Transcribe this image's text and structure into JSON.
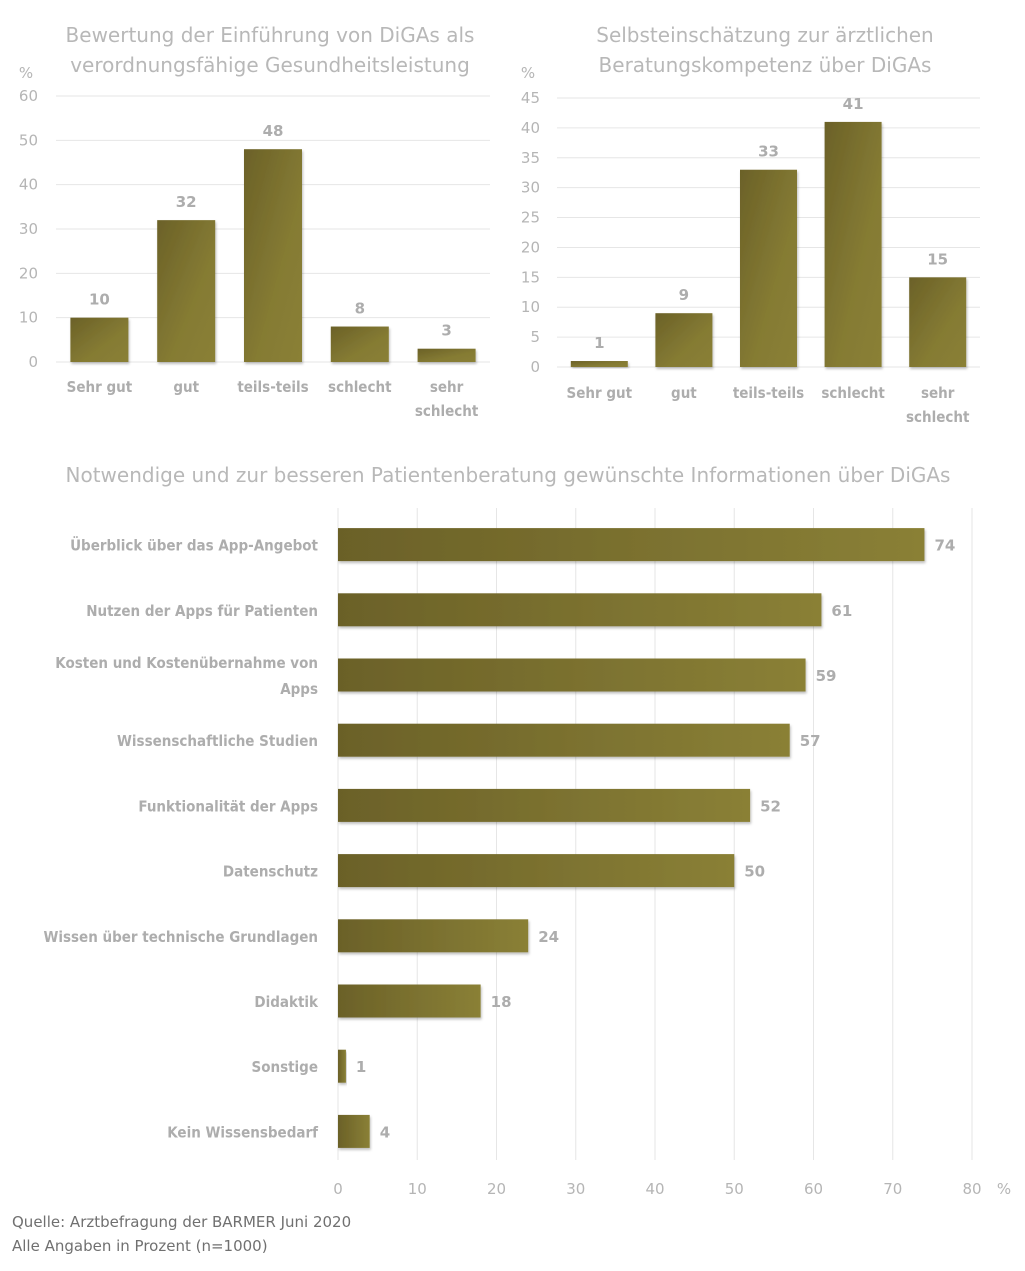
{
  "colors": {
    "bar_dark": "#6b6128",
    "bar_light": "#8a8036",
    "text": "#adadad",
    "grid": "#e6e6e6"
  },
  "chart_data": [
    {
      "type": "bar",
      "title": [
        "Bewertung der Einführung von DiGAs als",
        "verordnungsfähige Gesundheitsleistung"
      ],
      "ylabel": "%",
      "categories": [
        [
          "Sehr gut"
        ],
        [
          "gut"
        ],
        [
          "teils-teils"
        ],
        [
          "schlecht"
        ],
        [
          "sehr",
          "schlecht"
        ]
      ],
      "values": [
        10,
        32,
        48,
        8,
        3
      ],
      "yticks": [
        0,
        10,
        20,
        30,
        40,
        50,
        60
      ],
      "ylim": [
        0,
        60
      ],
      "grid": true
    },
    {
      "type": "bar",
      "title": [
        "Selbsteinschätzung zur ärztlichen",
        "Beratungskompetenz über DiGAs"
      ],
      "ylabel": "%",
      "categories": [
        [
          "Sehr gut"
        ],
        [
          "gut"
        ],
        [
          "teils-teils"
        ],
        [
          "schlecht"
        ],
        [
          "sehr",
          "schlecht"
        ]
      ],
      "values": [
        1,
        9,
        33,
        41,
        15
      ],
      "yticks": [
        0,
        5,
        10,
        15,
        20,
        25,
        30,
        35,
        40,
        45
      ],
      "ylim": [
        0,
        45
      ],
      "grid": true
    },
    {
      "type": "bar",
      "orientation": "horizontal",
      "title": [
        "Notwendige und zur besseren Patientenberatung gewünschte Informationen über DiGAs"
      ],
      "xlabel": "%",
      "categories": [
        [
          "Überblick über das App-Angebot"
        ],
        [
          "Nutzen der Apps für Patienten"
        ],
        [
          "Kosten und Kostenübernahme von",
          "Apps"
        ],
        [
          "Wissenschaftliche Studien"
        ],
        [
          "Funktionalität der Apps"
        ],
        [
          "Datenschutz"
        ],
        [
          "Wissen über technische Grundlagen"
        ],
        [
          "Didaktik"
        ],
        [
          "Sonstige"
        ],
        [
          "Kein Wissensbedarf"
        ]
      ],
      "values": [
        74,
        61,
        59,
        57,
        52,
        50,
        24,
        18,
        1,
        4
      ],
      "xticks": [
        0,
        10,
        20,
        30,
        40,
        50,
        60,
        70,
        80
      ],
      "xlim": [
        0,
        80
      ],
      "grid": true
    }
  ],
  "footer": {
    "source": "Quelle: Arztbefragung der BARMER Juni 2020",
    "note": "Alle Angaben in Prozent (n=1000)"
  }
}
